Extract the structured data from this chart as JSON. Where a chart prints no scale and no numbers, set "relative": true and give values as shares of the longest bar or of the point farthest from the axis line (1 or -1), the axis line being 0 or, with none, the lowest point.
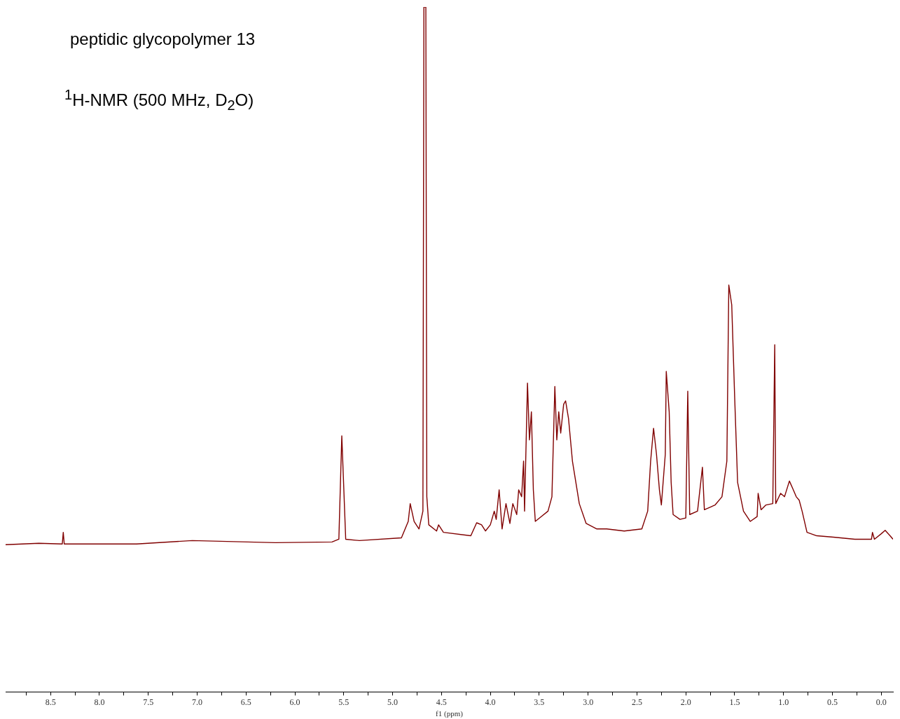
{
  "chart_data": {
    "type": "line",
    "title": "peptidic glycopolymer 13",
    "subtitle": "$^{1}$H-NMR (500 MHz, D$_{2}$O)",
    "xlabel": "f1 (ppm)",
    "relative": true,
    "tick_labels": "x",
    "color": "#800000",
    "xlim": [
      8.96,
      -0.12
    ],
    "xticks": [
      {
        "value": 8.75,
        "label": null
      },
      8.5,
      {
        "value": 8.25,
        "label": null
      },
      {
        "value": 8.0,
        "label": "8.0"
      },
      {
        "value": 7.75,
        "label": null
      },
      7.5,
      {
        "value": 7.25,
        "label": null
      },
      {
        "value": 7.0,
        "label": "7.0"
      },
      {
        "value": 6.75,
        "label": null
      },
      6.5,
      {
        "value": 6.25,
        "label": null
      },
      {
        "value": 6.0,
        "label": "6.0"
      },
      {
        "value": 5.75,
        "label": null
      },
      5.5,
      {
        "value": 5.25,
        "label": null
      },
      {
        "value": 5.0,
        "label": "5.0"
      },
      {
        "value": 4.75,
        "label": null
      },
      4.5,
      {
        "value": 4.25,
        "label": null
      },
      {
        "value": 4.0,
        "label": "4.0"
      },
      {
        "value": 3.75,
        "label": null
      },
      3.5,
      {
        "value": 3.25,
        "label": null
      },
      {
        "value": 3.0,
        "label": "3.0"
      },
      {
        "value": 2.75,
        "label": null
      },
      2.5,
      {
        "value": 2.25,
        "label": null
      },
      {
        "value": 2.0,
        "label": "2.0"
      },
      {
        "value": 1.75,
        "label": null
      },
      1.5,
      {
        "value": 1.25,
        "label": null
      },
      {
        "value": 1.0,
        "label": "1.0"
      },
      {
        "value": 0.75,
        "label": null
      },
      0.5,
      {
        "value": 0.25,
        "label": null
      },
      {
        "value": 0.0,
        "label": "0.0"
      }
    ],
    "x": [
      8.96,
      8.62,
      8.38,
      8.37,
      8.36,
      7.62,
      7.05,
      6.2,
      5.62,
      5.55,
      5.52,
      5.48,
      5.34,
      4.91,
      4.84,
      4.82,
      4.78,
      4.73,
      4.69,
      4.68,
      4.66,
      4.65,
      4.63,
      4.55,
      4.53,
      4.48,
      4.2,
      4.14,
      4.09,
      4.05,
      4.0,
      3.96,
      3.94,
      3.91,
      3.88,
      3.84,
      3.8,
      3.77,
      3.73,
      3.71,
      3.68,
      3.66,
      3.65,
      3.62,
      3.6,
      3.58,
      3.56,
      3.54,
      3.48,
      3.41,
      3.37,
      3.34,
      3.32,
      3.3,
      3.28,
      3.25,
      3.23,
      3.2,
      3.16,
      3.09,
      3.02,
      2.91,
      2.81,
      2.63,
      2.45,
      2.39,
      2.36,
      2.33,
      2.3,
      2.27,
      2.25,
      2.21,
      2.2,
      2.17,
      2.15,
      2.13,
      2.06,
      2.0,
      1.98,
      1.96,
      1.88,
      1.83,
      1.81,
      1.7,
      1.63,
      1.58,
      1.56,
      1.53,
      1.5,
      1.47,
      1.41,
      1.34,
      1.27,
      1.26,
      1.23,
      1.18,
      1.11,
      1.09,
      1.08,
      1.03,
      0.99,
      0.94,
      0.9,
      0.87,
      0.84,
      0.81,
      0.76,
      0.66,
      0.49,
      0.27,
      0.1,
      0.09,
      0.07,
      0.0,
      -0.04,
      -0.09,
      -0.12
    ],
    "values": [
      0.215,
      0.217,
      0.216,
      0.233,
      0.216,
      0.216,
      0.221,
      0.218,
      0.219,
      0.223,
      0.374,
      0.223,
      0.221,
      0.225,
      0.249,
      0.275,
      0.249,
      0.238,
      0.264,
      1.0,
      1.0,
      0.285,
      0.244,
      0.235,
      0.244,
      0.233,
      0.228,
      0.247,
      0.244,
      0.235,
      0.244,
      0.264,
      0.252,
      0.295,
      0.238,
      0.275,
      0.246,
      0.275,
      0.259,
      0.295,
      0.285,
      0.337,
      0.264,
      0.451,
      0.368,
      0.409,
      0.295,
      0.249,
      0.256,
      0.264,
      0.285,
      0.446,
      0.368,
      0.409,
      0.378,
      0.42,
      0.425,
      0.399,
      0.337,
      0.275,
      0.246,
      0.238,
      0.238,
      0.235,
      0.238,
      0.264,
      0.337,
      0.385,
      0.347,
      0.295,
      0.273,
      0.347,
      0.468,
      0.409,
      0.306,
      0.259,
      0.252,
      0.254,
      0.439,
      0.259,
      0.264,
      0.328,
      0.266,
      0.273,
      0.285,
      0.337,
      0.594,
      0.565,
      0.43,
      0.306,
      0.264,
      0.249,
      0.256,
      0.29,
      0.266,
      0.273,
      0.275,
      0.507,
      0.275,
      0.29,
      0.285,
      0.308,
      0.295,
      0.285,
      0.28,
      0.264,
      0.233,
      0.228,
      0.226,
      0.223,
      0.223,
      0.233,
      0.223,
      0.231,
      0.236,
      0.228,
      0.223
    ]
  }
}
